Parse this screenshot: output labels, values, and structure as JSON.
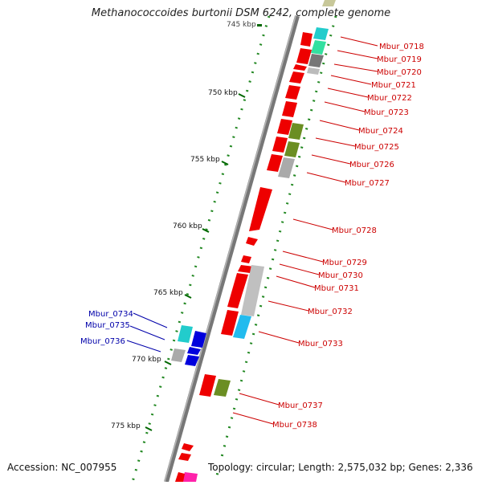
{
  "title": "Methanococcoides burtonii DSM 6242, complete genome",
  "footer": {
    "accession": "Accession: NC_007955",
    "topology": "Topology: circular; Length: 2,575,032 bp; Genes: 2,336"
  },
  "scale": {
    "top_partial_label": "745 kbp",
    "ticks": [
      "750 kbp",
      "755 kbp",
      "760 kbp",
      "765 kbp",
      "770 kbp",
      "775 kbp"
    ]
  },
  "genes_right": [
    "Mbur_0718",
    "Mbur_0719",
    "Mbur_0720",
    "Mbur_0721",
    "Mbur_0722",
    "Mbur_0723",
    "Mbur_0724",
    "Mbur_0725",
    "Mbur_0726",
    "Mbur_0727",
    "Mbur_0728",
    "Mbur_0729",
    "Mbur_0730",
    "Mbur_0731",
    "Mbur_0732",
    "Mbur_0733",
    "Mbur_0737",
    "Mbur_0738"
  ],
  "genes_left": [
    "Mbur_0734",
    "Mbur_0735",
    "Mbur_0736"
  ],
  "colors": {
    "right_label": "#cc0000",
    "left_label": "#0000aa",
    "cds": "#ee0000",
    "backbone": "#888888",
    "tick": "#006600",
    "blue_gene": "#0000dd",
    "cyan_gene": "#22cccc",
    "olive_gene": "#6b8e23",
    "gray_gene": "#aaaaaa"
  }
}
